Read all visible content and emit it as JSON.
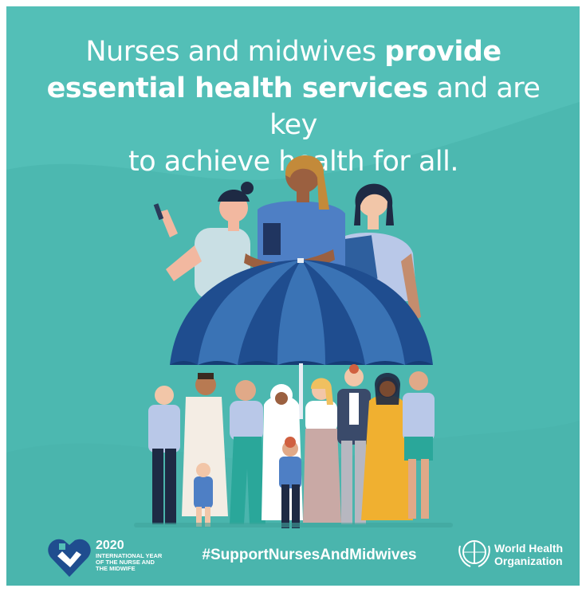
{
  "headline": {
    "part1": "Nurses and midwives ",
    "bold1": "provide",
    "bold2": "essential health services",
    "part2": " and are key",
    "part3": "to achieve health for all."
  },
  "footer": {
    "year_logo": {
      "year": "2020",
      "subtitle_line1": "INTERNATIONAL YEAR",
      "subtitle_line2": "OF THE NURSE AND",
      "subtitle_line3": "THE MIDWIFE"
    },
    "hashtag": "#SupportNursesAndMidwives",
    "who": {
      "line1": "World Health",
      "line2": "Organization"
    }
  },
  "colors": {
    "background": "#53bfb7",
    "umbrella_dark": "#1f4d8f",
    "umbrella_light": "#3a73b5"
  }
}
